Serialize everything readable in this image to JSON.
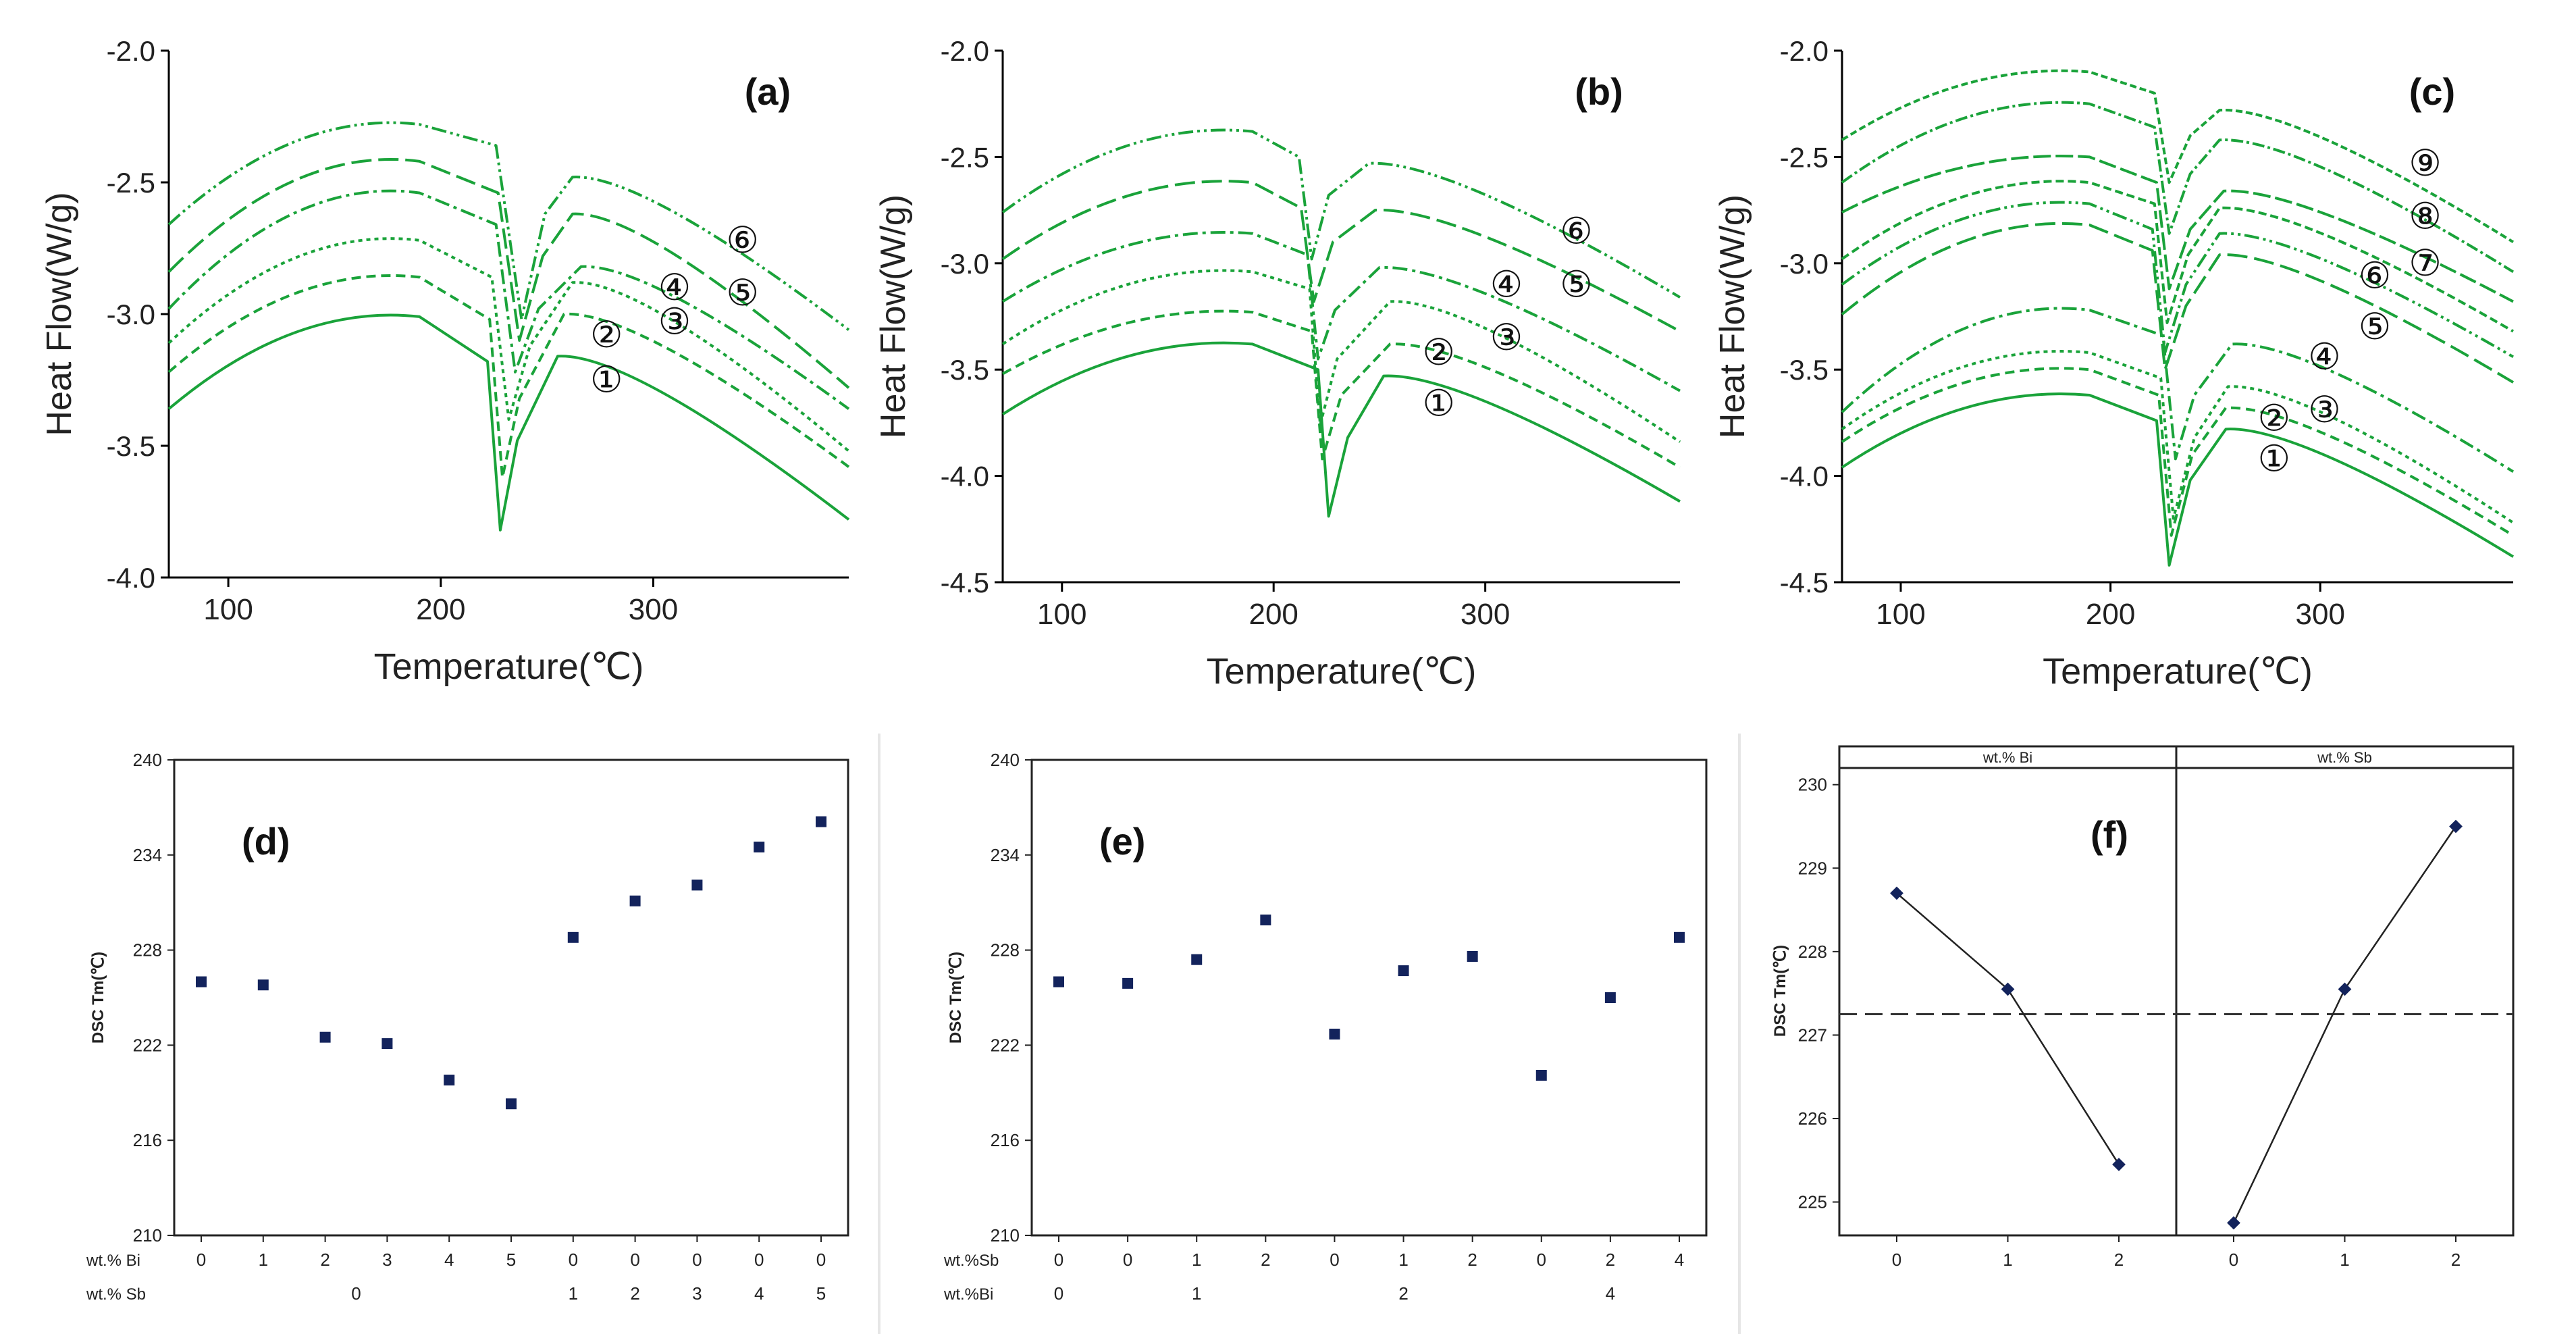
{
  "colors": {
    "curve": "#1aa33a",
    "axis": "#000000",
    "marker": "#13235c",
    "frame": "#555555",
    "dash": "#333333"
  },
  "chart_data": [
    {
      "id": "a",
      "type": "line",
      "panel_label": "(a)",
      "xlabel": "Temperature(℃)",
      "ylabel": "Heat Flow(W/g)",
      "xlim": [
        72,
        392
      ],
      "ylim": [
        -4.0,
        -2.0
      ],
      "xticks": [
        "100",
        "200",
        "300"
      ],
      "yticks": [
        "-4.0",
        "-3.5",
        "-3.0",
        "-2.5",
        "-2.0"
      ],
      "series": [
        {
          "name": "①",
          "peak_x": 228,
          "values": [
            [
              72,
              -3.36
            ],
            [
              190,
              -3.01
            ],
            [
              222,
              -3.18
            ],
            [
              228,
              -3.82
            ],
            [
              236,
              -3.48
            ],
            [
              255,
              -3.16
            ],
            [
              392,
              -3.78
            ]
          ]
        },
        {
          "name": "②",
          "peak_x": 229,
          "values": [
            [
              72,
              -3.22
            ],
            [
              190,
              -2.86
            ],
            [
              223,
              -3.02
            ],
            [
              229,
              -3.62
            ],
            [
              237,
              -3.32
            ],
            [
              258,
              -3.0
            ],
            [
              392,
              -3.58
            ]
          ]
        },
        {
          "name": "③",
          "peak_x": 232,
          "values": [
            [
              72,
              -3.11
            ],
            [
              190,
              -2.72
            ],
            [
              224,
              -2.86
            ],
            [
              232,
              -3.4
            ],
            [
              242,
              -3.12
            ],
            [
              262,
              -2.88
            ],
            [
              392,
              -3.52
            ]
          ]
        },
        {
          "name": "④",
          "peak_x": 235,
          "values": [
            [
              72,
              -2.98
            ],
            [
              190,
              -2.54
            ],
            [
              226,
              -2.66
            ],
            [
              235,
              -3.22
            ],
            [
              246,
              -2.98
            ],
            [
              266,
              -2.82
            ],
            [
              392,
              -3.36
            ]
          ]
        },
        {
          "name": "⑤",
          "peak_x": 237,
          "values": [
            [
              72,
              -2.84
            ],
            [
              190,
              -2.42
            ],
            [
              227,
              -2.54
            ],
            [
              237,
              -3.1
            ],
            [
              248,
              -2.78
            ],
            [
              262,
              -2.62
            ],
            [
              392,
              -3.28
            ]
          ]
        },
        {
          "name": "⑥",
          "peak_x": 238,
          "values": [
            [
              72,
              -2.66
            ],
            [
              190,
              -2.28
            ],
            [
              226,
              -2.36
            ],
            [
              238,
              -3.02
            ],
            [
              249,
              -2.62
            ],
            [
              262,
              -2.48
            ],
            [
              392,
              -3.06
            ]
          ]
        }
      ],
      "labels": [
        {
          "text": "①",
          "x": 278,
          "y": -3.25
        },
        {
          "text": "②",
          "x": 278,
          "y": -3.08
        },
        {
          "text": "③",
          "x": 310,
          "y": -3.03
        },
        {
          "text": "④",
          "x": 310,
          "y": -2.9
        },
        {
          "text": "⑤",
          "x": 342,
          "y": -2.92
        },
        {
          "text": "⑥",
          "x": 342,
          "y": -2.72
        }
      ]
    },
    {
      "id": "b",
      "type": "line",
      "panel_label": "(b)",
      "xlabel": "Temperature(℃)",
      "ylabel": "Heat Flow(W/g)",
      "xlim": [
        72,
        392
      ],
      "ylim": [
        -4.5,
        -2.0
      ],
      "xticks": [
        "100",
        "200",
        "300"
      ],
      "yticks": [
        "-4.5",
        "-4.0",
        "-3.5",
        "-3.0",
        "-2.5",
        "-2.0"
      ],
      "series": [
        {
          "name": "①",
          "peak_x": 226,
          "values": [
            [
              72,
              -3.71
            ],
            [
              190,
              -3.38
            ],
            [
              221,
              -3.5
            ],
            [
              226,
              -4.19
            ],
            [
              235,
              -3.82
            ],
            [
              252,
              -3.53
            ],
            [
              392,
              -4.12
            ]
          ]
        },
        {
          "name": "②",
          "peak_x": 223,
          "values": [
            [
              72,
              -3.52
            ],
            [
              190,
              -3.23
            ],
            [
              218,
              -3.32
            ],
            [
              223,
              -3.92
            ],
            [
              232,
              -3.62
            ],
            [
              255,
              -3.38
            ],
            [
              392,
              -3.96
            ]
          ]
        },
        {
          "name": "③",
          "peak_x": 222,
          "values": [
            [
              72,
              -3.38
            ],
            [
              190,
              -3.04
            ],
            [
              217,
              -3.12
            ],
            [
              222,
              -3.76
            ],
            [
              230,
              -3.45
            ],
            [
              255,
              -3.18
            ],
            [
              392,
              -3.84
            ]
          ]
        },
        {
          "name": "④",
          "peak_x": 221,
          "values": [
            [
              72,
              -3.18
            ],
            [
              190,
              -2.86
            ],
            [
              216,
              -2.96
            ],
            [
              221,
              -3.45
            ],
            [
              229,
              -3.22
            ],
            [
              250,
              -3.02
            ],
            [
              392,
              -3.6
            ]
          ]
        },
        {
          "name": "⑤",
          "peak_x": 219,
          "values": [
            [
              72,
              -2.98
            ],
            [
              190,
              -2.62
            ],
            [
              213,
              -2.74
            ],
            [
              219,
              -3.18
            ],
            [
              228,
              -2.9
            ],
            [
              248,
              -2.75
            ],
            [
              392,
              -3.32
            ]
          ]
        },
        {
          "name": "⑥",
          "peak_x": 218,
          "values": [
            [
              72,
              -2.76
            ],
            [
              190,
              -2.38
            ],
            [
              212,
              -2.5
            ],
            [
              218,
              -2.98
            ],
            [
              226,
              -2.68
            ],
            [
              245,
              -2.53
            ],
            [
              392,
              -3.16
            ]
          ]
        }
      ],
      "labels": [
        {
          "text": "①",
          "x": 278,
          "y": -3.66
        },
        {
          "text": "②",
          "x": 278,
          "y": -3.42
        },
        {
          "text": "③",
          "x": 310,
          "y": -3.35
        },
        {
          "text": "④",
          "x": 310,
          "y": -3.1
        },
        {
          "text": "⑤",
          "x": 343,
          "y": -3.1
        },
        {
          "text": "⑥",
          "x": 343,
          "y": -2.85
        }
      ]
    },
    {
      "id": "c",
      "type": "line",
      "panel_label": "(c)",
      "xlabel": "Temperature(℃)",
      "ylabel": "Heat Flow(W/g)",
      "xlim": [
        72,
        392
      ],
      "ylim": [
        -4.5,
        -2.0
      ],
      "xticks": [
        "100",
        "200",
        "300"
      ],
      "yticks": [
        "-4.5",
        "-4.0",
        "-3.5",
        "-3.0",
        "-2.5",
        "-2.0"
      ],
      "series": [
        {
          "name": "①",
          "peak_x": 228,
          "values": [
            [
              72,
              -3.96
            ],
            [
              190,
              -3.62
            ],
            [
              222,
              -3.74
            ],
            [
              228,
              -4.42
            ],
            [
              238,
              -4.02
            ],
            [
              255,
              -3.78
            ],
            [
              392,
              -4.38
            ]
          ]
        },
        {
          "name": "②",
          "peak_x": 229,
          "values": [
            [
              72,
              -3.84
            ],
            [
              190,
              -3.5
            ],
            [
              223,
              -3.62
            ],
            [
              229,
              -4.28
            ],
            [
              239,
              -3.9
            ],
            [
              255,
              -3.68
            ],
            [
              392,
              -4.28
            ]
          ]
        },
        {
          "name": "③",
          "peak_x": 230,
          "values": [
            [
              72,
              -3.78
            ],
            [
              190,
              -3.42
            ],
            [
              224,
              -3.54
            ],
            [
              230,
              -4.2
            ],
            [
              240,
              -3.82
            ],
            [
              256,
              -3.58
            ],
            [
              392,
              -4.22
            ]
          ]
        },
        {
          "name": "④",
          "peak_x": 231,
          "values": [
            [
              72,
              -3.7
            ],
            [
              190,
              -3.22
            ],
            [
              225,
              -3.34
            ],
            [
              231,
              -3.92
            ],
            [
              240,
              -3.62
            ],
            [
              258,
              -3.38
            ],
            [
              392,
              -3.98
            ]
          ]
        },
        {
          "name": "⑤",
          "peak_x": 226,
          "values": [
            [
              72,
              -3.24
            ],
            [
              190,
              -2.82
            ],
            [
              220,
              -2.94
            ],
            [
              226,
              -3.5
            ],
            [
              236,
              -3.2
            ],
            [
              252,
              -2.96
            ],
            [
              392,
              -3.56
            ]
          ]
        },
        {
          "name": "⑥",
          "peak_x": 226,
          "values": [
            [
              72,
              -3.1
            ],
            [
              190,
              -2.72
            ],
            [
              220,
              -2.84
            ],
            [
              226,
              -3.42
            ],
            [
              236,
              -3.1
            ],
            [
              252,
              -2.86
            ],
            [
              392,
              -3.44
            ]
          ]
        },
        {
          "name": "⑦",
          "peak_x": 227,
          "values": [
            [
              72,
              -2.98
            ],
            [
              190,
              -2.62
            ],
            [
              221,
              -2.72
            ],
            [
              227,
              -3.28
            ],
            [
              237,
              -2.96
            ],
            [
              252,
              -2.74
            ],
            [
              392,
              -3.32
            ]
          ]
        },
        {
          "name": "⑧",
          "peak_x": 228,
          "values": [
            [
              72,
              -2.76
            ],
            [
              190,
              -2.5
            ],
            [
              222,
              -2.62
            ],
            [
              228,
              -3.12
            ],
            [
              238,
              -2.84
            ],
            [
              254,
              -2.66
            ],
            [
              392,
              -3.18
            ]
          ]
        },
        {
          "name": "⑨",
          "peak_x": 228,
          "values": [
            [
              72,
              -2.62
            ],
            [
              190,
              -2.25
            ],
            [
              221,
              -2.36
            ],
            [
              228,
              -2.86
            ],
            [
              238,
              -2.58
            ],
            [
              252,
              -2.42
            ],
            [
              392,
              -3.04
            ]
          ]
        },
        {
          "name": "",
          "peak_x": 228,
          "values": [
            [
              72,
              -2.42
            ],
            [
              190,
              -2.1
            ],
            [
              221,
              -2.2
            ],
            [
              228,
              -2.62
            ],
            [
              238,
              -2.4
            ],
            [
              252,
              -2.28
            ],
            [
              392,
              -2.9
            ]
          ]
        }
      ],
      "labels": [
        {
          "text": "①",
          "x": 278,
          "y": -3.92
        },
        {
          "text": "②",
          "x": 278,
          "y": -3.73
        },
        {
          "text": "③",
          "x": 302,
          "y": -3.69
        },
        {
          "text": "④",
          "x": 302,
          "y": -3.44
        },
        {
          "text": "⑤",
          "x": 326,
          "y": -3.3
        },
        {
          "text": "⑥",
          "x": 326,
          "y": -3.06
        },
        {
          "text": "⑦",
          "x": 350,
          "y": -3.0
        },
        {
          "text": "⑧",
          "x": 350,
          "y": -2.78
        },
        {
          "text": "⑨",
          "x": 350,
          "y": -2.53
        }
      ]
    },
    {
      "id": "d",
      "type": "scatter",
      "panel_label": "(d)",
      "ylabel": "DSC Tm(℃)",
      "ylim": [
        210,
        240
      ],
      "yticks": [
        "210",
        "216",
        "222",
        "228",
        "234",
        "240"
      ],
      "row1_label": "wt.% Bi",
      "row2_label": "wt.% Sb",
      "row1": [
        "0",
        "1",
        "2",
        "3",
        "4",
        "5",
        "0",
        "0",
        "0",
        "0",
        "0"
      ],
      "row2_groups": [
        {
          "label": "0",
          "from": 0,
          "to": 5
        },
        {
          "label": "1",
          "from": 6,
          "to": 6
        },
        {
          "label": "2",
          "from": 7,
          "to": 7
        },
        {
          "label": "3",
          "from": 8,
          "to": 8
        },
        {
          "label": "4",
          "from": 9,
          "to": 9
        },
        {
          "label": "5",
          "from": 10,
          "to": 10
        }
      ],
      "values": [
        226.0,
        225.8,
        222.5,
        222.1,
        219.8,
        218.3,
        228.8,
        231.1,
        232.1,
        234.5,
        236.1
      ]
    },
    {
      "id": "e",
      "type": "scatter",
      "panel_label": "(e)",
      "ylabel": "DSC Tm(℃)",
      "ylim": [
        210,
        240
      ],
      "yticks": [
        "210",
        "216",
        "222",
        "228",
        "234",
        "240"
      ],
      "row1_label": "wt.%Sb",
      "row2_label": "wt.%Bi",
      "row1": [
        "0",
        "0",
        "1",
        "2",
        "0",
        "1",
        "2",
        "0",
        "2",
        "4"
      ],
      "row2_groups": [
        {
          "label": "0",
          "from": 0,
          "to": 0
        },
        {
          "label": "1",
          "from": 1,
          "to": 3
        },
        {
          "label": "2",
          "from": 4,
          "to": 6
        },
        {
          "label": "4",
          "from": 7,
          "to": 9
        }
      ],
      "values": [
        226.0,
        225.9,
        227.4,
        229.9,
        222.7,
        226.7,
        227.6,
        220.1,
        225.0,
        228.8
      ]
    },
    {
      "id": "f",
      "type": "line",
      "panel_label": "(f)",
      "ylabel": "DSC Tm(℃)",
      "ylim": [
        224.6,
        230.2
      ],
      "yticks": [
        "225",
        "226",
        "227",
        "228",
        "229",
        "230"
      ],
      "mean_line": 227.25,
      "facets": [
        {
          "title": "wt.% Bi",
          "categories": [
            "0",
            "1",
            "2"
          ],
          "values": [
            228.7,
            227.55,
            225.45
          ]
        },
        {
          "title": "wt.% Sb",
          "categories": [
            "0",
            "1",
            "2"
          ],
          "values": [
            224.75,
            227.55,
            229.5
          ]
        }
      ]
    }
  ]
}
